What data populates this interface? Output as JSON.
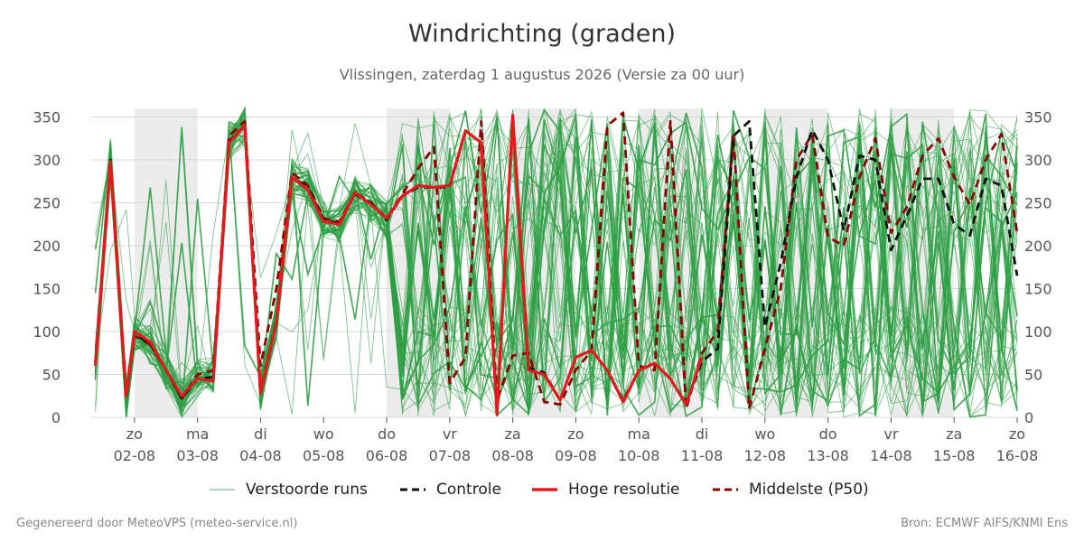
{
  "chart_data": {
    "type": "line",
    "title": "Windrichting (graden)",
    "subtitle": "Vlissingen, zaterdag  1 augustus 2026 (Versie za 00 uur)",
    "ylim": [
      0,
      360
    ],
    "yticks": [
      0,
      50,
      100,
      150,
      200,
      250,
      300,
      350
    ],
    "xlim": [
      0.3,
      15.0
    ],
    "x_ticks": [
      {
        "x": 1,
        "day": "zo",
        "date": "02-08"
      },
      {
        "x": 2,
        "day": "ma",
        "date": "03-08"
      },
      {
        "x": 3,
        "day": "di",
        "date": "04-08"
      },
      {
        "x": 4,
        "day": "wo",
        "date": "05-08"
      },
      {
        "x": 5,
        "day": "do",
        "date": "06-08"
      },
      {
        "x": 6,
        "day": "vr",
        "date": "07-08"
      },
      {
        "x": 7,
        "day": "za",
        "date": "08-08"
      },
      {
        "x": 8,
        "day": "zo",
        "date": "09-08"
      },
      {
        "x": 9,
        "day": "ma",
        "date": "10-08"
      },
      {
        "x": 10,
        "day": "di",
        "date": "11-08"
      },
      {
        "x": 11,
        "day": "wo",
        "date": "12-08"
      },
      {
        "x": 12,
        "day": "do",
        "date": "13-08"
      },
      {
        "x": 13,
        "day": "vr",
        "date": "14-08"
      },
      {
        "x": 14,
        "day": "za",
        "date": "15-08"
      },
      {
        "x": 15,
        "day": "zo",
        "date": "16-08"
      }
    ],
    "shaded_days": [
      [
        1,
        2
      ],
      [
        5,
        6
      ],
      [
        7,
        8
      ],
      [
        9,
        10
      ],
      [
        11,
        12
      ],
      [
        13,
        14
      ]
    ],
    "grid": true,
    "legend_placement": "bottom",
    "series": [
      {
        "name": "Hoge resolutie",
        "color": "#e31a1c",
        "style": "solid",
        "x": [
          0.38,
          0.62,
          0.87,
          1.0,
          1.25,
          1.5,
          1.75,
          2.0,
          2.25,
          2.5,
          2.75,
          3.0,
          3.25,
          3.5,
          3.75,
          4.0,
          4.25,
          4.5,
          4.75,
          5.0,
          5.25,
          5.5,
          5.75,
          6.0,
          6.25,
          6.5,
          6.75,
          7.0,
          7.25,
          7.5,
          7.75,
          8.0,
          8.25,
          8.5,
          8.75,
          9.0,
          9.25,
          9.5,
          9.75,
          10.0
        ],
        "values": [
          60,
          298,
          25,
          100,
          88,
          55,
          25,
          45,
          42,
          320,
          340,
          28,
          110,
          280,
          265,
          228,
          225,
          262,
          248,
          232,
          258,
          270,
          268,
          270,
          334,
          320,
          3,
          352,
          55,
          50,
          20,
          70,
          78,
          55,
          18,
          55,
          63,
          45,
          15,
          70
        ]
      },
      {
        "name": "Controle",
        "color": "#111111",
        "style": "dashed",
        "x": [
          0.38,
          0.62,
          0.87,
          1.0,
          1.25,
          1.5,
          1.75,
          2.0,
          2.25,
          2.5,
          2.75,
          3.0,
          3.25,
          3.5,
          3.75,
          4.0,
          4.25,
          4.5,
          4.75,
          5.0,
          5.25,
          5.5,
          5.75,
          6.0,
          6.25,
          6.5,
          6.75,
          7.0,
          7.25,
          7.5,
          7.75,
          8.0,
          8.25,
          8.5,
          8.75,
          9.0,
          9.25,
          9.5,
          9.75,
          10.0,
          10.25,
          10.5,
          10.75,
          11.0,
          11.25,
          11.5,
          11.75,
          12.0,
          12.25,
          12.5,
          12.75,
          13.0,
          13.25,
          13.5,
          13.75,
          14.0,
          14.25,
          14.5,
          14.75,
          15.0
        ],
        "values": [
          63,
          300,
          22,
          98,
          85,
          55,
          22,
          45,
          47,
          322,
          340,
          30,
          112,
          280,
          268,
          230,
          226,
          260,
          250,
          230,
          258,
          268,
          268,
          268,
          334,
          320,
          5,
          350,
          58,
          52,
          20,
          70,
          78,
          55,
          20,
          55,
          63,
          45,
          15,
          65,
          80,
          328,
          345,
          105,
          180,
          280,
          335,
          300,
          218,
          305,
          300,
          195,
          235,
          278,
          278,
          225,
          212,
          278,
          270,
          165
        ]
      },
      {
        "name": "Middelste (P50)",
        "color": "#8b0000",
        "style": "dashed",
        "x": [
          0.38,
          0.62,
          0.87,
          1.0,
          1.25,
          1.5,
          1.75,
          2.0,
          2.25,
          2.5,
          2.75,
          3.0,
          3.25,
          3.5,
          3.75,
          4.0,
          4.25,
          4.5,
          4.75,
          5.0,
          5.25,
          5.5,
          5.75,
          6.0,
          6.25,
          6.5,
          6.75,
          7.0,
          7.25,
          7.5,
          7.75,
          8.0,
          8.25,
          8.5,
          8.75,
          9.0,
          9.25,
          9.5,
          9.75,
          10.0,
          10.25,
          10.5,
          10.75,
          11.0,
          11.25,
          11.5,
          11.75,
          12.0,
          12.25,
          12.5,
          12.75,
          13.0,
          13.25,
          13.5,
          13.75,
          14.0,
          14.25,
          14.5,
          14.75,
          15.0
        ],
        "values": [
          65,
          295,
          25,
          95,
          85,
          55,
          22,
          50,
          55,
          328,
          345,
          60,
          150,
          285,
          270,
          232,
          228,
          262,
          250,
          232,
          260,
          290,
          315,
          40,
          70,
          345,
          20,
          72,
          75,
          18,
          15,
          55,
          78,
          340,
          355,
          60,
          55,
          345,
          10,
          75,
          100,
          330,
          10,
          80,
          150,
          300,
          330,
          210,
          200,
          280,
          325,
          215,
          245,
          305,
          325,
          280,
          248,
          300,
          330,
          215
        ]
      }
    ],
    "ensemble": {
      "name": "Verstoorde runs",
      "color": "#2e9e44",
      "members": 50
    }
  },
  "legend": {
    "ensemble": "Verstoorde runs",
    "control": "Controle",
    "hires": "Hoge resolutie",
    "median": "Middelste (P50)"
  },
  "footer": {
    "left": "Gegenereerd door MeteoVPS (meteo-service.nl)",
    "right": "Bron: ECMWF AIFS/KNMI Ens"
  }
}
